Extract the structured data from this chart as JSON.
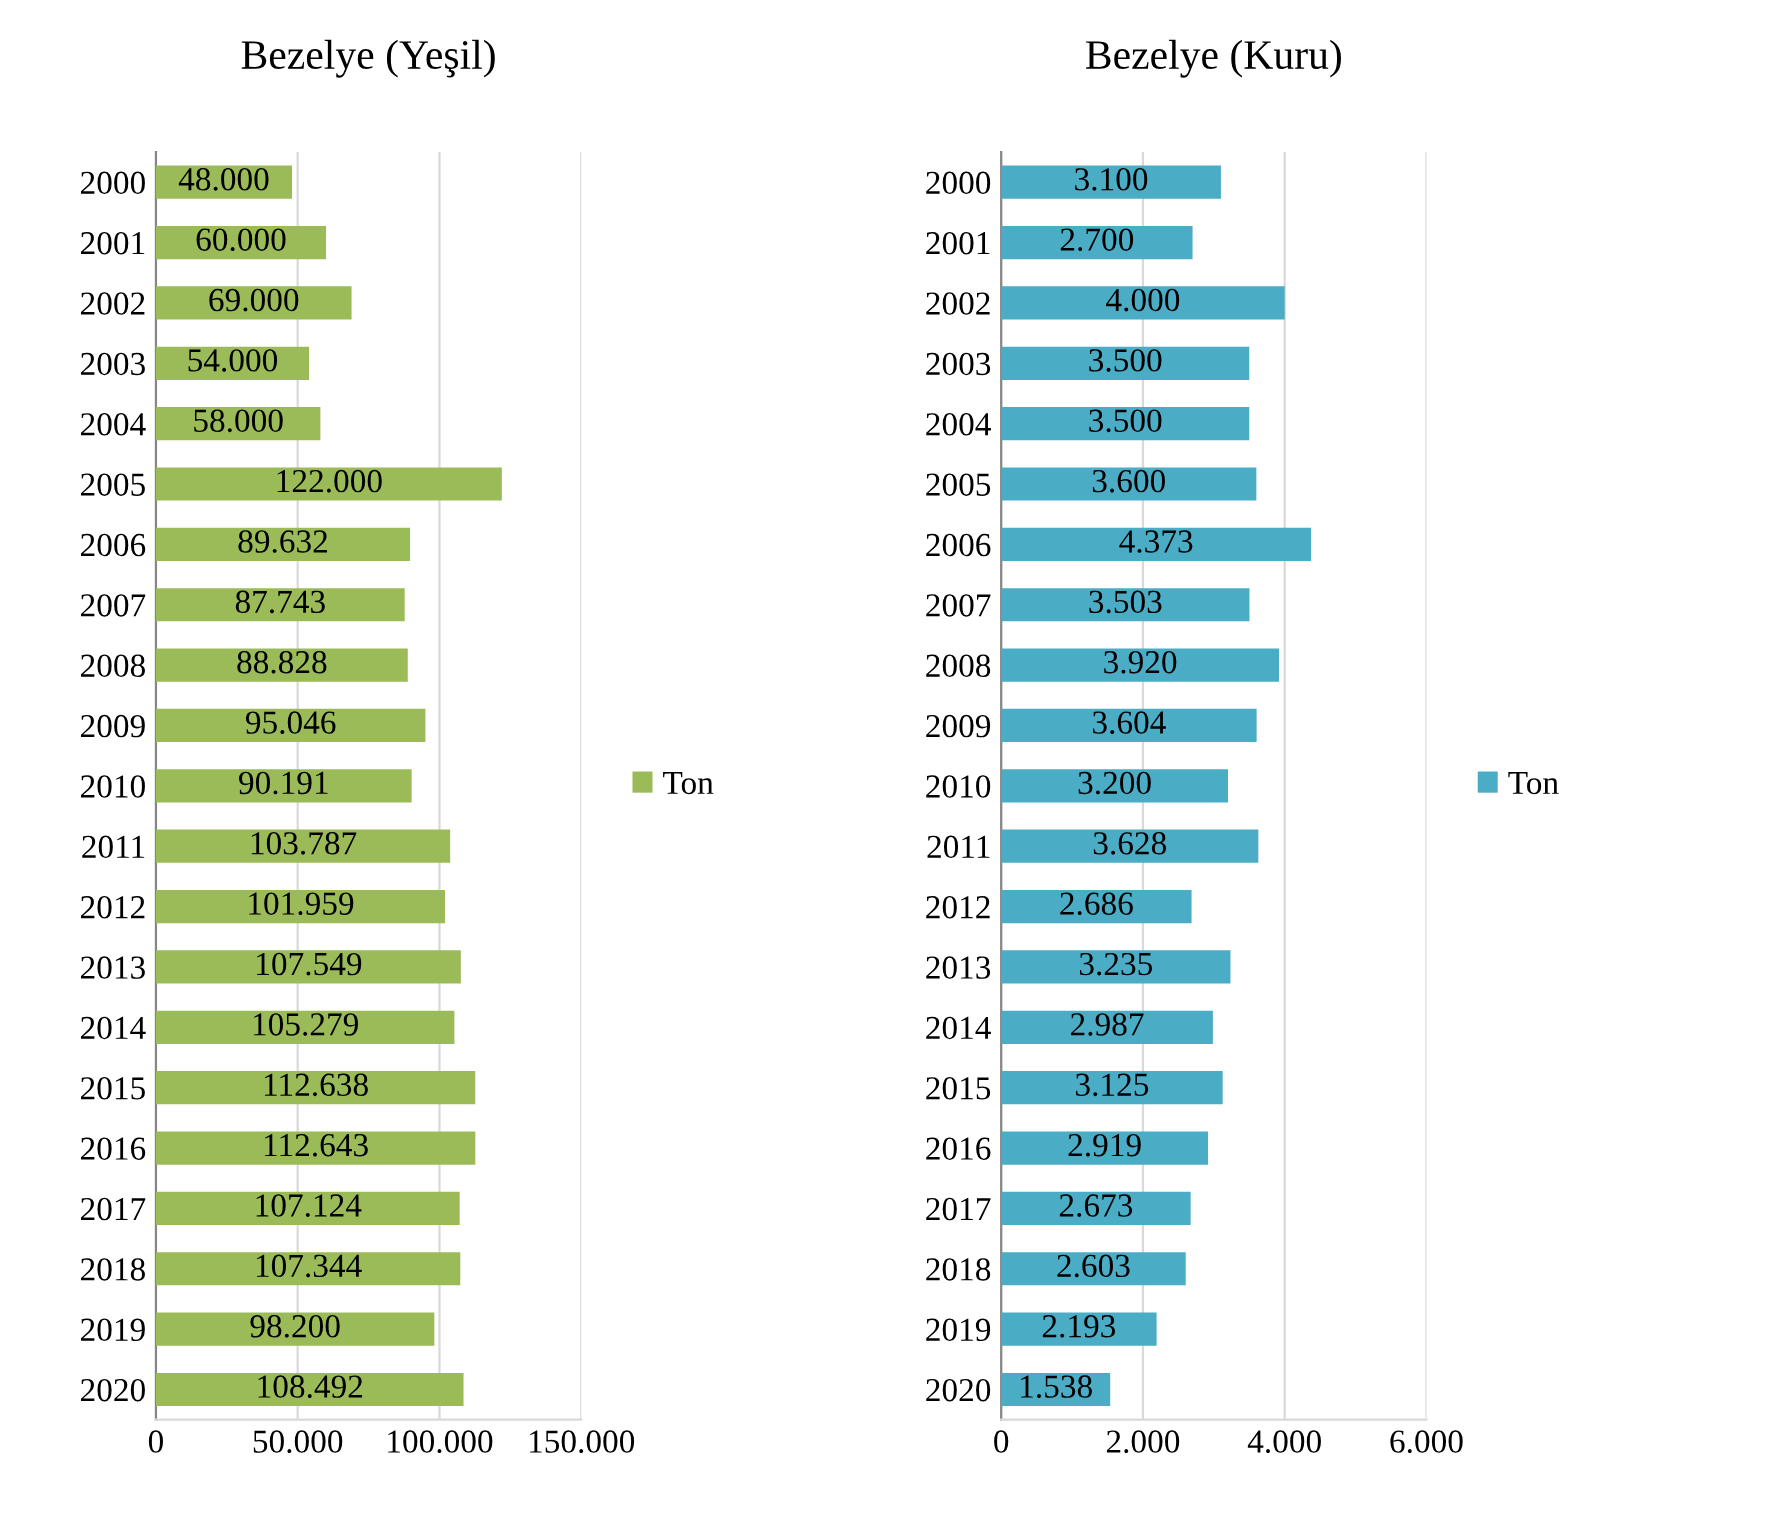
{
  "chart_data": [
    {
      "type": "bar",
      "orientation": "horizontal",
      "title": "Bezelye (Yeşil)",
      "categories": [
        "2000",
        "2001",
        "2002",
        "2003",
        "2004",
        "2005",
        "2006",
        "2007",
        "2008",
        "2009",
        "2010",
        "2011",
        "2012",
        "2013",
        "2014",
        "2015",
        "2016",
        "2017",
        "2018",
        "2019",
        "2020"
      ],
      "series": [
        {
          "name": "Ton",
          "color": "#9bbb59",
          "values": [
            48000,
            60000,
            69000,
            54000,
            58000,
            122000,
            89632,
            87743,
            88828,
            95046,
            90191,
            103787,
            101959,
            107549,
            105279,
            112638,
            112643,
            107124,
            107344,
            98200,
            108492
          ],
          "value_labels": [
            "48.000",
            "60.000",
            "69.000",
            "54.000",
            "58.000",
            "122.000",
            "89.632",
            "87.743",
            "88.828",
            "95.046",
            "90.191",
            "103.787",
            "101.959",
            "107.549",
            "105.279",
            "112.638",
            "112.643",
            "107.124",
            "107.344",
            "98.200",
            "108.492"
          ]
        }
      ],
      "xlim": [
        0,
        150000
      ],
      "xticks": [
        0,
        {
          "value": 50000,
          "label": "50.000"
        },
        {
          "value": 100000,
          "label": "100.000"
        },
        {
          "value": 150000,
          "label": "150.000"
        }
      ],
      "grid": "x",
      "legend": "right"
    },
    {
      "type": "bar",
      "orientation": "horizontal",
      "title": "Bezelye (Kuru)",
      "categories": [
        "2000",
        "2001",
        "2002",
        "2003",
        "2004",
        "2005",
        "2006",
        "2007",
        "2008",
        "2009",
        "2010",
        "2011",
        "2012",
        "2013",
        "2014",
        "2015",
        "2016",
        "2017",
        "2018",
        "2019",
        "2020"
      ],
      "series": [
        {
          "name": "Ton",
          "color": "#4bacc6",
          "values": [
            3100,
            2700,
            4000,
            3500,
            3500,
            3600,
            4373,
            3503,
            3920,
            3604,
            3200,
            3628,
            2686,
            3235,
            2987,
            3125,
            2919,
            2673,
            2603,
            2193,
            1538
          ],
          "value_labels": [
            "3.100",
            "2.700",
            "4.000",
            "3.500",
            "3.500",
            "3.600",
            "4.373",
            "3.503",
            "3.920",
            "3.604",
            "3.200",
            "3.628",
            "2.686",
            "3.235",
            "2.987",
            "3.125",
            "2.919",
            "2.673",
            "2.603",
            "2.193",
            "1.538"
          ]
        }
      ],
      "xlim": [
        0,
        6000
      ],
      "xticks": [
        0,
        {
          "value": 2000,
          "label": "2.000"
        },
        {
          "value": 4000,
          "label": "4.000"
        },
        {
          "value": 6000,
          "label": "6.000"
        }
      ],
      "grid": "x",
      "legend": "right"
    }
  ]
}
